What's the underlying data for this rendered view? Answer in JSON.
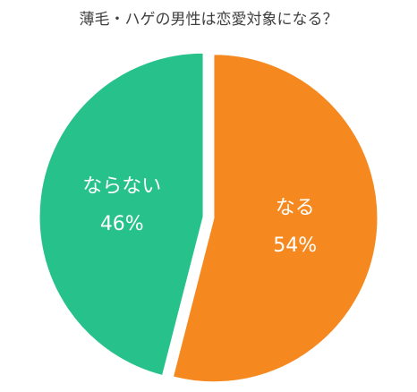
{
  "chart_data": {
    "type": "pie",
    "title": "薄毛・ハゲの男性は恋愛対象になる？",
    "categories": [
      "なる",
      "ならない"
    ],
    "values": [
      54,
      46
    ],
    "value_labels": [
      "54%",
      "46%"
    ],
    "colors": [
      "#f5891f",
      "#27c28b"
    ]
  }
}
